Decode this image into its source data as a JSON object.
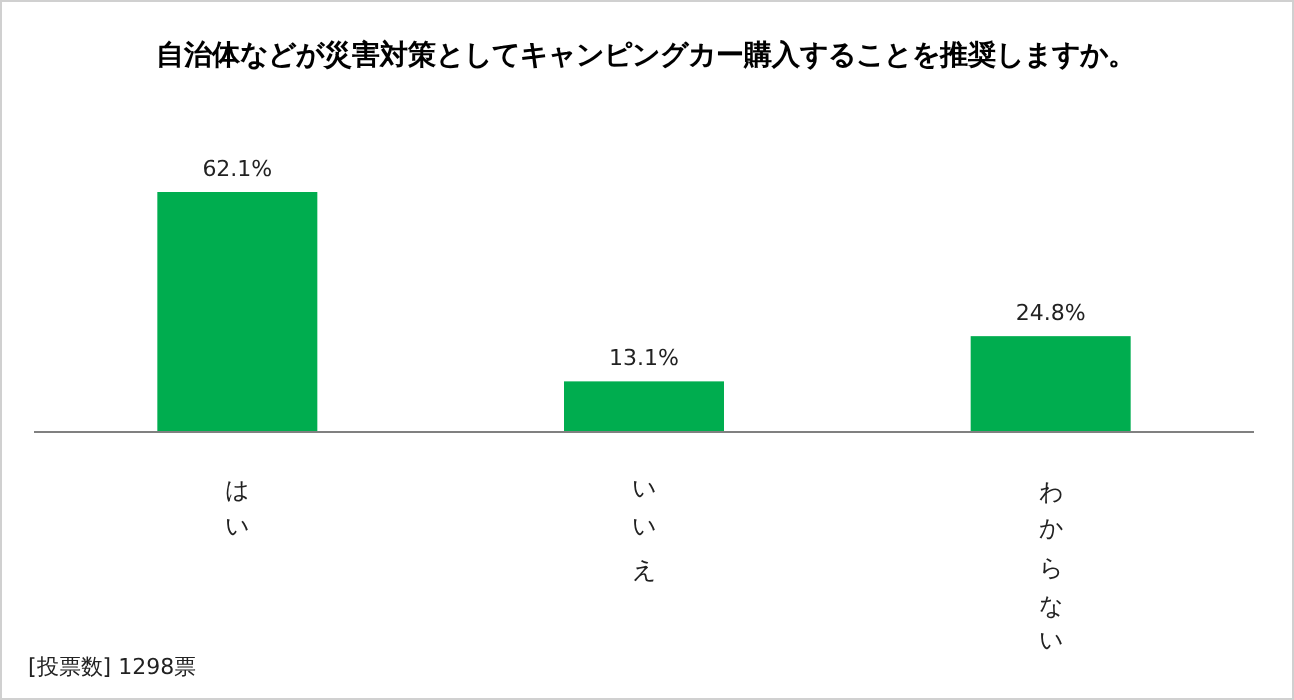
{
  "chart_data": {
    "type": "bar",
    "title": "自治体などが災害対策としてキャンピングカー購入することを推奨しますか。",
    "categories": [
      "はい",
      "いいえ",
      "わからない"
    ],
    "values": [
      62.1,
      13.1,
      24.8
    ],
    "value_labels": [
      "62.1%",
      "13.1%",
      "24.8%"
    ],
    "color": "#00ad4f",
    "annotations": [
      "[投票数] 1298票"
    ]
  }
}
